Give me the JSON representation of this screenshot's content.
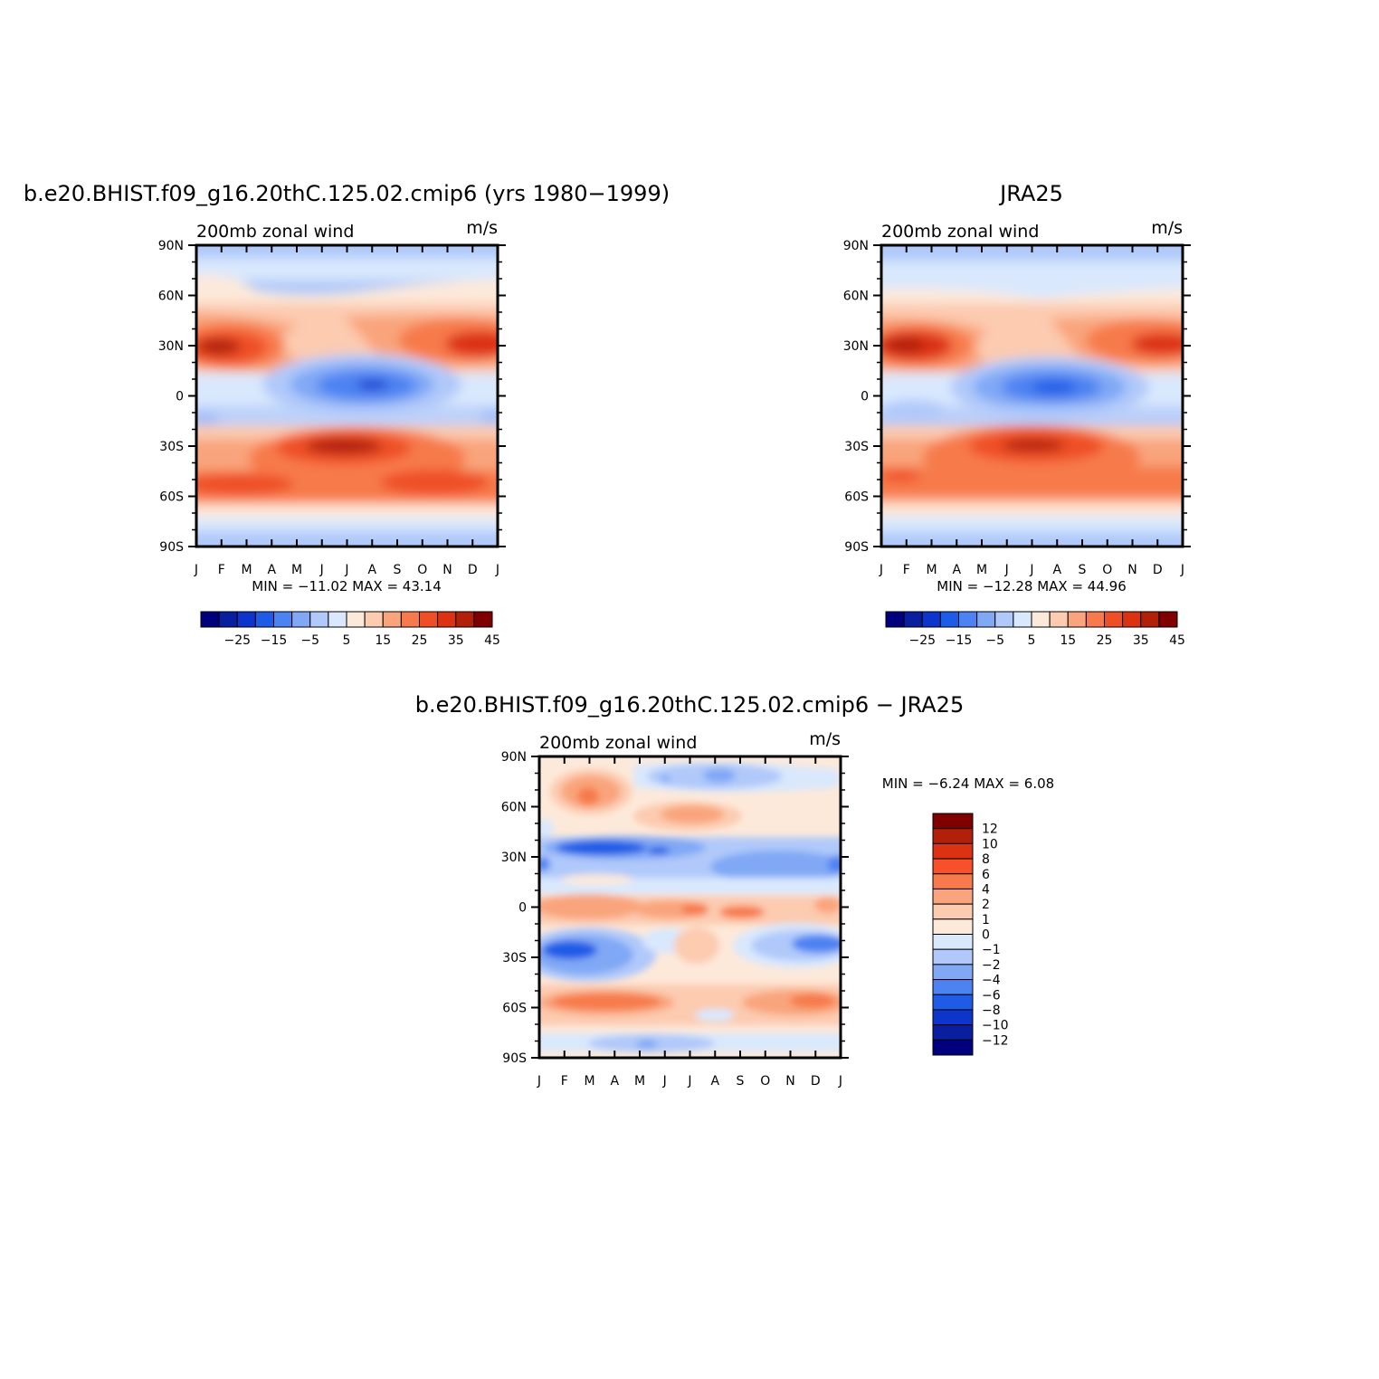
{
  "colors": {
    "model_scale": [
      "#00007f",
      "#0a1ea0",
      "#0d35cc",
      "#1e5be6",
      "#4d82f2",
      "#80a8f5",
      "#b0c9fa",
      "#d9e8fd",
      "#fde9da",
      "#fccbb0",
      "#f9a47c",
      "#f77a4c",
      "#ef4f26",
      "#dc3212",
      "#b3200a",
      "#800000"
    ],
    "diff_scale": [
      "#800000",
      "#b3200a",
      "#dc3212",
      "#f7502a",
      "#f77a4c",
      "#f9a47c",
      "#fccbb0",
      "#fde9da",
      "#d9e8fd",
      "#b0c9fa",
      "#80a8f5",
      "#4d82f2",
      "#1e5be6",
      "#0d35cc",
      "#0a1ea0",
      "#00007f"
    ]
  },
  "chart_data": [
    {
      "type": "heatmap",
      "title": "b.e20.BHIST.f09_g16.20thC.125.02.cmip6 (yrs 1980−1999)",
      "subtitle_left": "200mb zonal wind",
      "subtitle_right": "m/s",
      "x_tick_labels": [
        "J",
        "F",
        "M",
        "A",
        "M",
        "J",
        "J",
        "A",
        "S",
        "O",
        "N",
        "D",
        "J"
      ],
      "y_tick_labels": [
        "90N",
        "60N",
        "30N",
        "0",
        "30S",
        "60S",
        "90S"
      ],
      "ylim": [
        -90,
        90
      ],
      "min_label": "MIN = −11.02 MAX = 43.14",
      "min": -11.02,
      "max": 43.14,
      "colorbar": {
        "orientation": "horizontal",
        "levels": [
          -30,
          -25,
          -20,
          -15,
          -10,
          -5,
          0,
          5,
          10,
          15,
          20,
          25,
          30,
          35,
          40,
          45
        ],
        "tick_labels": [
          "−25",
          "−15",
          "−5",
          "5",
          "15",
          "25",
          "35",
          "45"
        ]
      }
    },
    {
      "type": "heatmap",
      "title": "JRA25",
      "subtitle_left": "200mb zonal wind",
      "subtitle_right": "m/s",
      "x_tick_labels": [
        "J",
        "F",
        "M",
        "A",
        "M",
        "J",
        "J",
        "A",
        "S",
        "O",
        "N",
        "D",
        "J"
      ],
      "y_tick_labels": [
        "90N",
        "60N",
        "30N",
        "0",
        "30S",
        "60S",
        "90S"
      ],
      "ylim": [
        -90,
        90
      ],
      "min_label": "MIN = −12.28 MAX = 44.96",
      "min": -12.28,
      "max": 44.96,
      "colorbar": {
        "orientation": "horizontal",
        "levels": [
          -30,
          -25,
          -20,
          -15,
          -10,
          -5,
          0,
          5,
          10,
          15,
          20,
          25,
          30,
          35,
          40,
          45
        ],
        "tick_labels": [
          "−25",
          "−15",
          "−5",
          "5",
          "15",
          "25",
          "35",
          "45"
        ]
      }
    },
    {
      "type": "heatmap",
      "title": "b.e20.BHIST.f09_g16.20thC.125.02.cmip6 − JRA25",
      "subtitle_left": "200mb zonal wind",
      "subtitle_right": "m/s",
      "x_tick_labels": [
        "J",
        "F",
        "M",
        "A",
        "M",
        "J",
        "J",
        "A",
        "S",
        "O",
        "N",
        "D",
        "J"
      ],
      "y_tick_labels": [
        "90N",
        "60N",
        "30N",
        "0",
        "30S",
        "60S",
        "90S"
      ],
      "ylim": [
        -90,
        90
      ],
      "min_label": "MIN = −6.24 MAX = 6.08",
      "min": -6.24,
      "max": 6.08,
      "colorbar": {
        "orientation": "vertical",
        "levels": [
          12,
          10,
          8,
          6,
          4,
          2,
          1,
          0,
          -1,
          -2,
          -4,
          -6,
          -8,
          -10,
          -12
        ],
        "tick_labels": [
          "12",
          "10",
          "8",
          "6",
          "4",
          "2",
          "1",
          "0",
          "−1",
          "−2",
          "−4",
          "−6",
          "−8",
          "−10",
          "−12"
        ]
      }
    }
  ]
}
